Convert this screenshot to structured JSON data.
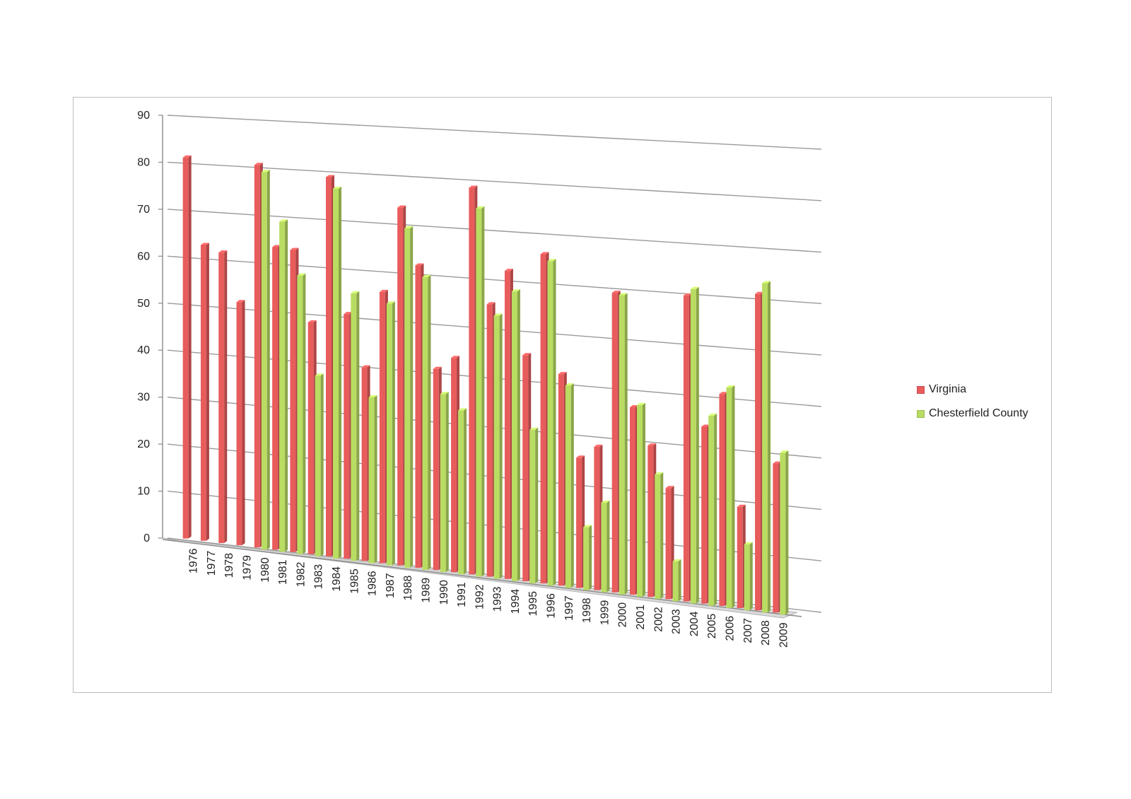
{
  "chart_data": {
    "type": "bar",
    "title": "",
    "xlabel": "",
    "ylabel": "",
    "ylim": [
      0,
      90
    ],
    "yticks": [
      0,
      10,
      20,
      30,
      40,
      50,
      60,
      70,
      80,
      90
    ],
    "grid": true,
    "legend_position": "right",
    "categories": [
      "1976",
      "1977",
      "1978",
      "1979",
      "1980",
      "1981",
      "1982",
      "1983",
      "1984",
      "1985",
      "1986",
      "1987",
      "1988",
      "1989",
      "1990",
      "1991",
      "1992",
      "1993",
      "1994",
      "1995",
      "1996",
      "1997",
      "1998",
      "1999",
      "2000",
      "2001",
      "2002",
      "2003",
      "2004",
      "2005",
      "2006",
      "2007",
      "2008",
      "2009"
    ],
    "series": [
      {
        "name": "Virginia",
        "color": "#e85c5c",
        "values": [
          81,
          63,
          62,
          52,
          82,
          65,
          65,
          50,
          82,
          53,
          42,
          59,
          78,
          66,
          44,
          47,
          85,
          60,
          68,
          50,
          73,
          47,
          29,
          32,
          67,
          42,
          34,
          25,
          69,
          40,
          48,
          23,
          72,
          34
        ]
      },
      {
        "name": "Chesterfield County",
        "color": "#b9dc62",
        "values": [
          null,
          null,
          null,
          null,
          81,
          71,
          60,
          39,
          80,
          58,
          36,
          57,
          74,
          64,
          39,
          36,
          81,
          58,
          64,
          34,
          72,
          45,
          14,
          20,
          67,
          43,
          28,
          9,
          71,
          43,
          50,
          15,
          75,
          37
        ]
      }
    ]
  }
}
